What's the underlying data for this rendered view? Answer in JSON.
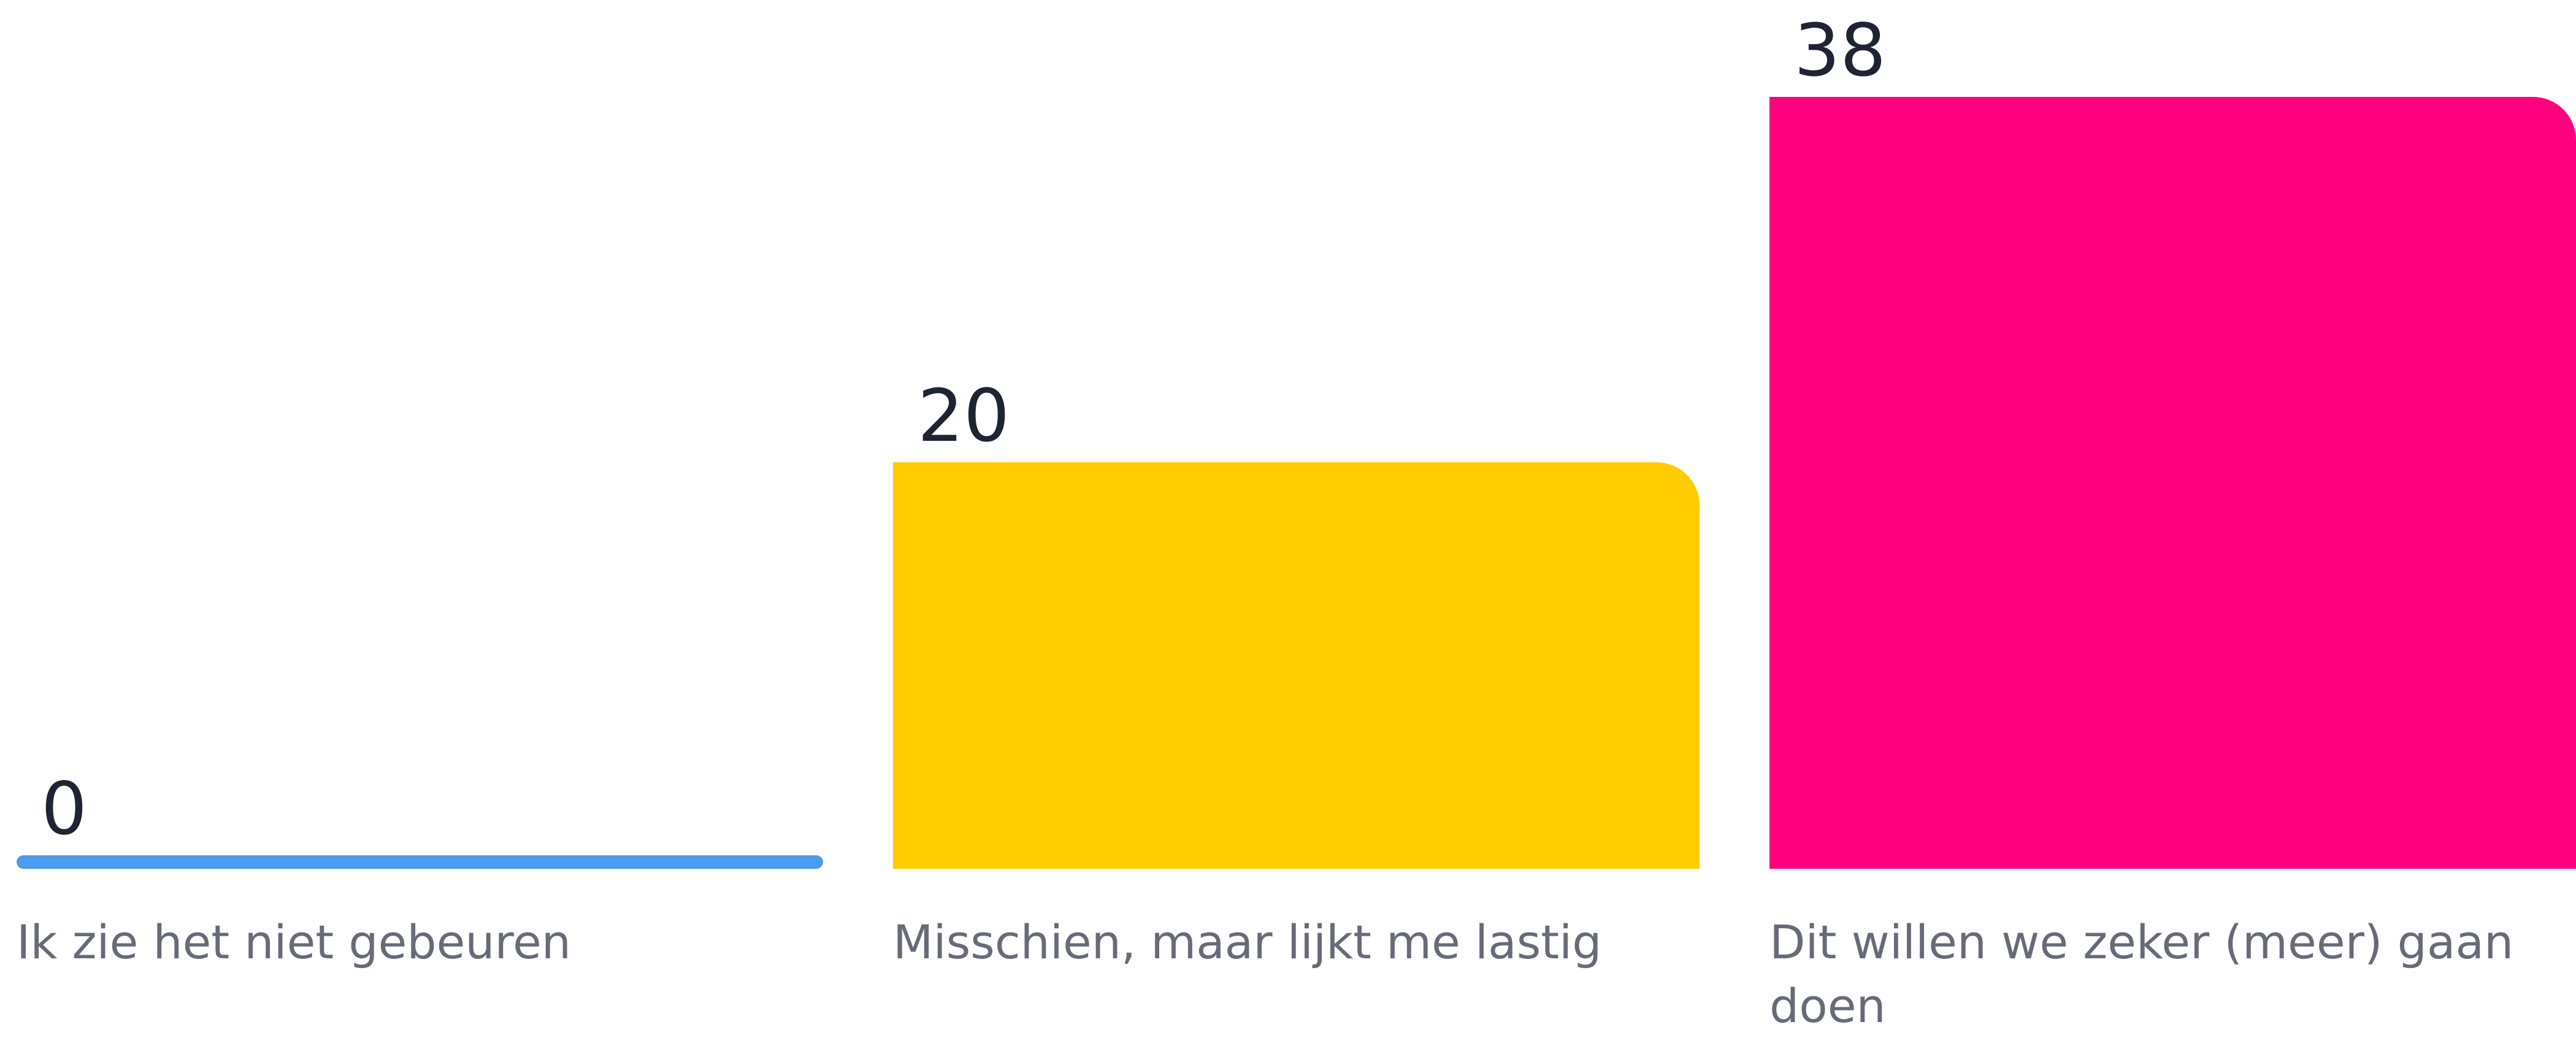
{
  "chart_data": {
    "type": "bar",
    "categories": [
      "Ik zie het niet gebeuren",
      "Misschien, maar lijkt me lastig",
      "Dit willen we zeker (meer) gaan doen"
    ],
    "values": [
      0,
      20,
      38
    ],
    "colors": [
      "#4c9bec",
      "#ffcc00",
      "#ff007f"
    ]
  }
}
